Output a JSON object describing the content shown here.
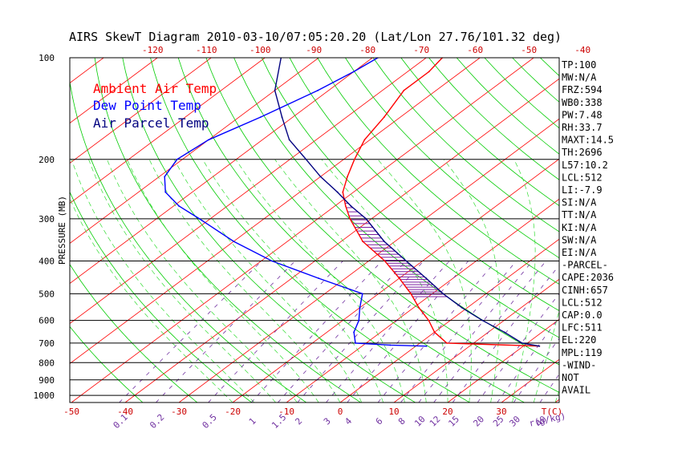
{
  "chart_data": {
    "type": "line",
    "title": "AIRS SkewT Diagram 2010-03-10/07:05:20.20 (Lat/Lon 27.76/101.32 deg)",
    "ylabel": "PRESSURE (MB)",
    "xlabel_bottom": "T(C)",
    "mixing_ratio_unit": "r(g/kg)",
    "pressure_ticks": [
      100,
      200,
      300,
      400,
      500,
      600,
      700,
      800,
      900,
      1000
    ],
    "top_temp_ticks": [
      -120,
      -110,
      -100,
      -90,
      -80,
      -70,
      -60,
      -50,
      -40
    ],
    "bottom_temp_ticks": [
      -50,
      -40,
      -30,
      -20,
      -10,
      0,
      10,
      20,
      30
    ],
    "mixing_ratio_ticks": [
      "0.1",
      "0.2",
      "0.5",
      "1",
      "1.5",
      "2",
      "3",
      "4",
      "6",
      "8",
      "10",
      "12",
      "15",
      "20",
      "25",
      "30",
      "40"
    ],
    "ylim": [
      100,
      1050
    ],
    "legend": [
      {
        "name": "Ambient Air Temp",
        "color": "#ff0000"
      },
      {
        "name": "Dew Point Temp",
        "color": "#0000ff"
      },
      {
        "name": "Air Parcel Temp",
        "color": "#000080"
      }
    ],
    "series": [
      {
        "name": "Ambient Air Temp",
        "color": "#ff0000",
        "points": [
          [
            100,
            -67
          ],
          [
            110,
            -66
          ],
          [
            125,
            -66
          ],
          [
            150,
            -63
          ],
          [
            175,
            -61
          ],
          [
            200,
            -58
          ],
          [
            225,
            -55
          ],
          [
            250,
            -52
          ],
          [
            275,
            -48
          ],
          [
            300,
            -44
          ],
          [
            350,
            -36
          ],
          [
            400,
            -27
          ],
          [
            450,
            -20
          ],
          [
            500,
            -14
          ],
          [
            550,
            -9
          ],
          [
            600,
            -4
          ],
          [
            650,
            0
          ],
          [
            700,
            5
          ],
          [
            715,
            23
          ]
        ]
      },
      {
        "name": "Dew Point Temp",
        "color": "#0000ff",
        "points": [
          [
            100,
            -79
          ],
          [
            110,
            -80
          ],
          [
            125,
            -82
          ],
          [
            150,
            -86
          ],
          [
            175,
            -90
          ],
          [
            200,
            -91
          ],
          [
            225,
            -89
          ],
          [
            250,
            -85
          ],
          [
            275,
            -79
          ],
          [
            300,
            -72
          ],
          [
            350,
            -60
          ],
          [
            400,
            -48
          ],
          [
            450,
            -35
          ],
          [
            500,
            -23
          ],
          [
            550,
            -20
          ],
          [
            600,
            -17
          ],
          [
            650,
            -15
          ],
          [
            700,
            -12
          ],
          [
            710,
            -5
          ],
          [
            715,
            2
          ]
        ]
      },
      {
        "name": "Air Parcel Temp",
        "color": "#000080",
        "points": [
          [
            100,
            -97
          ],
          [
            125,
            -90
          ],
          [
            150,
            -82
          ],
          [
            175,
            -75
          ],
          [
            200,
            -67
          ],
          [
            225,
            -60
          ],
          [
            250,
            -53
          ],
          [
            275,
            -47
          ],
          [
            300,
            -41
          ],
          [
            350,
            -32
          ],
          [
            400,
            -23
          ],
          [
            450,
            -15
          ],
          [
            500,
            -8
          ],
          [
            550,
            -1
          ],
          [
            600,
            6
          ],
          [
            650,
            13
          ],
          [
            700,
            19
          ],
          [
            715,
            23
          ]
        ]
      }
    ]
  },
  "indices": [
    "TP:100",
    "MW:N/A",
    "FRZ:594",
    "WB0:338",
    "PW:7.48",
    "RH:33.7",
    "MAXT:14.5",
    "TH:2696",
    "L57:10.2",
    "LCL:512",
    "LI:-7.9",
    "SI:N/A",
    "TT:N/A",
    "KI:N/A",
    "SW:N/A",
    "EI:N/A",
    "-PARCEL-",
    "CAPE:2036",
    "CINH:657",
    "LCL:512",
    "CAP:0.0",
    "LFC:511",
    "EL:220",
    "MPL:119",
    "-WIND-",
    "NOT",
    "AVAIL"
  ],
  "colors": {
    "isotherm": "#ff0000",
    "dry_adiabat": "#00cc00",
    "moist_adiabat": "#33dd33",
    "mixing_ratio": "#7030a0",
    "cape_hatch": "#7b1fa2",
    "isobar": "#000000"
  }
}
